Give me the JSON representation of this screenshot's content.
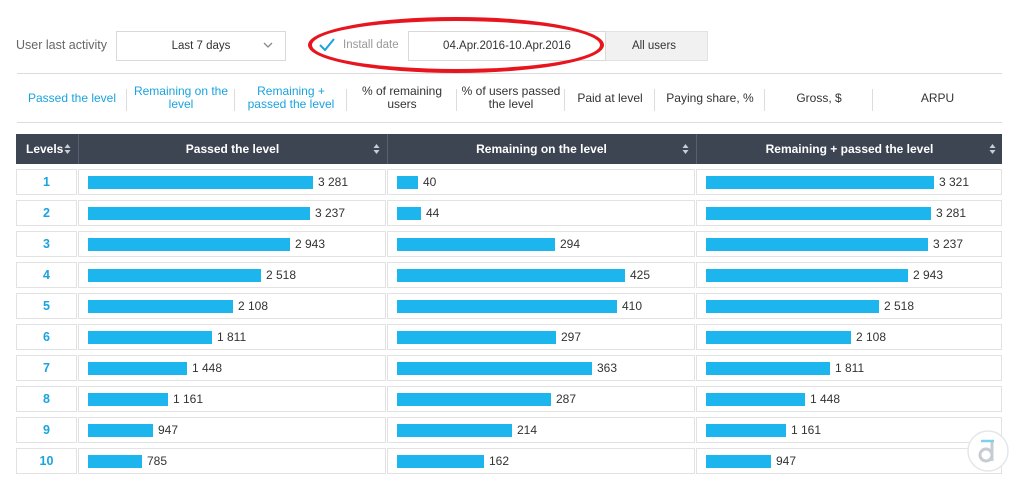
{
  "filters": {
    "activity_label": "User last activity",
    "period_value": "Last 7 days",
    "install_date_label": "Install date",
    "date_range": "04.Apr.2016-10.Apr.2016",
    "users_value": "All users"
  },
  "colors": {
    "accent": "#1aa3de",
    "bar": "#1cb5ee",
    "header_bg": "#3d4553",
    "highlight": "#e8141e"
  },
  "tabs": [
    {
      "label": "Passed the level",
      "active": true
    },
    {
      "label": "Remaining on the level",
      "active": true
    },
    {
      "label": "Remaining + passed the level",
      "active": true
    },
    {
      "label": "% of remaining users",
      "active": false
    },
    {
      "label": "% of users passed the level",
      "active": false
    },
    {
      "label": "Paid at level",
      "active": false
    },
    {
      "label": "Paying share, %",
      "active": false
    },
    {
      "label": "Gross, $",
      "active": false
    },
    {
      "label": "ARPU",
      "active": false
    }
  ],
  "table": {
    "columns": [
      "Levels",
      "Passed the level",
      "Remaining on the level",
      "Remaining + passed the level"
    ],
    "rows": [
      {
        "level": "1",
        "passed": "3 281",
        "remaining": "40",
        "remaining_passed": "3 321"
      },
      {
        "level": "2",
        "passed": "3 237",
        "remaining": "44",
        "remaining_passed": "3 281"
      },
      {
        "level": "3",
        "passed": "2 943",
        "remaining": "294",
        "remaining_passed": "3 237"
      },
      {
        "level": "4",
        "passed": "2 518",
        "remaining": "425",
        "remaining_passed": "2 943"
      },
      {
        "level": "5",
        "passed": "2 108",
        "remaining": "410",
        "remaining_passed": "2 518"
      },
      {
        "level": "6",
        "passed": "1 811",
        "remaining": "297",
        "remaining_passed": "2 108"
      },
      {
        "level": "7",
        "passed": "1 448",
        "remaining": "363",
        "remaining_passed": "1 811"
      },
      {
        "level": "8",
        "passed": "1 161",
        "remaining": "287",
        "remaining_passed": "1 448"
      },
      {
        "level": "9",
        "passed": "947",
        "remaining": "214",
        "remaining_passed": "1 161"
      },
      {
        "level": "10",
        "passed": "785",
        "remaining": "162",
        "remaining_passed": "947"
      }
    ]
  },
  "chart_data": {
    "type": "bar",
    "categories": [
      "1",
      "2",
      "3",
      "4",
      "5",
      "6",
      "7",
      "8",
      "9",
      "10"
    ],
    "series": [
      {
        "name": "Passed the level",
        "values": [
          3281,
          3237,
          2943,
          2518,
          2108,
          1811,
          1448,
          1161,
          947,
          785
        ]
      },
      {
        "name": "Remaining on the level",
        "values": [
          40,
          44,
          294,
          425,
          410,
          297,
          363,
          287,
          214,
          162
        ]
      },
      {
        "name": "Remaining + passed the level",
        "values": [
          3321,
          3281,
          3237,
          2943,
          2518,
          2108,
          1811,
          1448,
          1161,
          947
        ]
      }
    ]
  },
  "icons": {
    "period_select": "chevron-down-icon",
    "install_check": "checkmark-icon",
    "sort": "sort-arrows-icon",
    "logo": "devtodev-logo-icon"
  }
}
